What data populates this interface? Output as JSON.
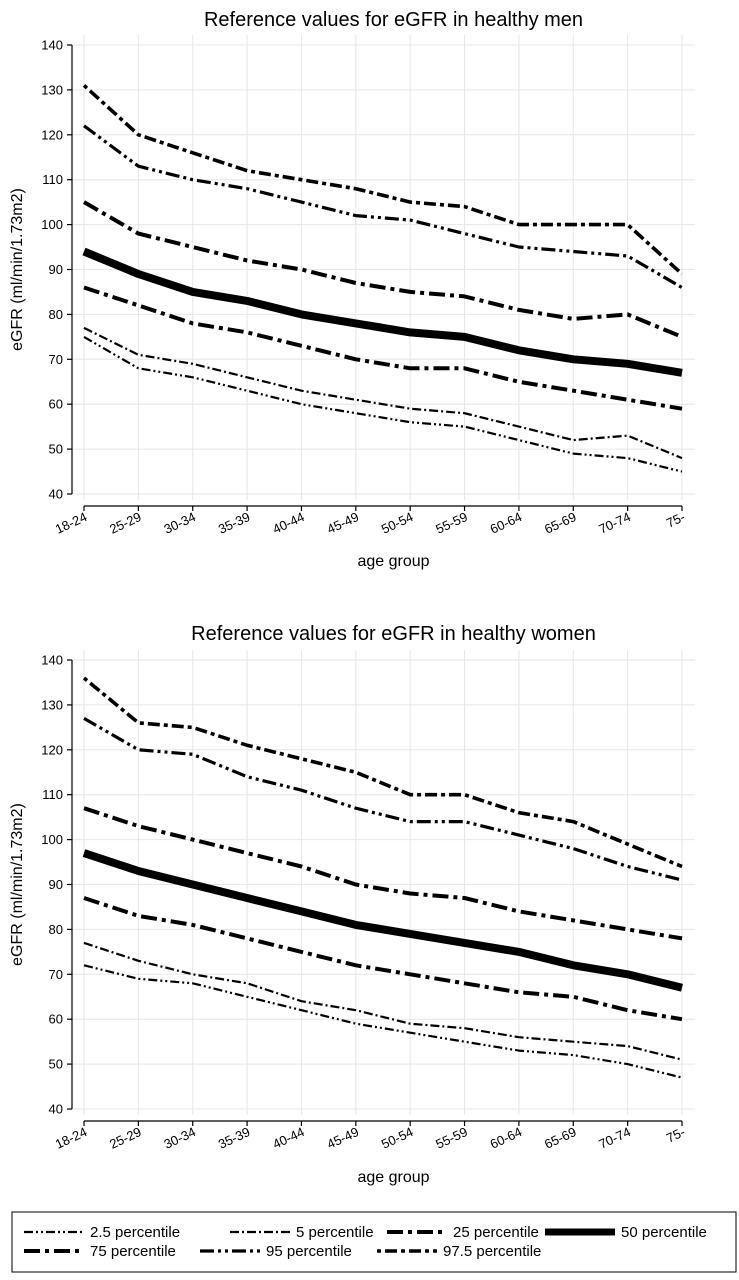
{
  "chart_data": [
    {
      "type": "line",
      "title": "Reference values for eGFR in healthy men",
      "xlabel": "age group",
      "ylabel": "eGFR (ml/min/1.73m2)",
      "ylim": [
        40,
        140
      ],
      "yticks": [
        40,
        50,
        60,
        70,
        80,
        90,
        100,
        110,
        120,
        130,
        140
      ],
      "grid": true,
      "categories": [
        "18-24",
        "25-29",
        "30-34",
        "35-39",
        "40-44",
        "45-49",
        "50-54",
        "55-59",
        "60-64",
        "65-69",
        "70-74",
        "75-"
      ],
      "series": [
        {
          "name": "2.5 percentile",
          "values": [
            75,
            68,
            66,
            63,
            60,
            58,
            56,
            55,
            52,
            49,
            48,
            45
          ]
        },
        {
          "name": "5 percentile",
          "values": [
            77,
            71,
            69,
            66,
            63,
            61,
            59,
            58,
            55,
            52,
            53,
            48
          ]
        },
        {
          "name": "25 percentile",
          "values": [
            86,
            82,
            78,
            76,
            73,
            70,
            68,
            68,
            65,
            63,
            61,
            59
          ]
        },
        {
          "name": "50 percentile",
          "values": [
            94,
            89,
            85,
            83,
            80,
            78,
            76,
            75,
            72,
            70,
            69,
            67
          ]
        },
        {
          "name": "75 percentile",
          "values": [
            105,
            98,
            95,
            92,
            90,
            87,
            85,
            84,
            81,
            79,
            80,
            75
          ]
        },
        {
          "name": "95 percentile",
          "values": [
            122,
            113,
            110,
            108,
            105,
            102,
            101,
            98,
            95,
            94,
            93,
            86
          ]
        },
        {
          "name": "97.5 percentile",
          "values": [
            131,
            120,
            116,
            112,
            110,
            108,
            105,
            104,
            100,
            100,
            100,
            89
          ]
        }
      ]
    },
    {
      "type": "line",
      "title": "Reference values for eGFR in healthy women",
      "xlabel": "age group",
      "ylabel": "eGFR (ml/min/1.73m2)",
      "ylim": [
        40,
        140
      ],
      "yticks": [
        40,
        50,
        60,
        70,
        80,
        90,
        100,
        110,
        120,
        130,
        140
      ],
      "grid": true,
      "categories": [
        "18-24",
        "25-29",
        "30-34",
        "35-39",
        "40-44",
        "45-49",
        "50-54",
        "55-59",
        "60-64",
        "65-69",
        "70-74",
        "75-"
      ],
      "series": [
        {
          "name": "2.5 percentile",
          "values": [
            72,
            69,
            68,
            65,
            62,
            59,
            57,
            55,
            53,
            52,
            50,
            47
          ]
        },
        {
          "name": "5 percentile",
          "values": [
            77,
            73,
            70,
            68,
            64,
            62,
            59,
            58,
            56,
            55,
            54,
            51
          ]
        },
        {
          "name": "25 percentile",
          "values": [
            87,
            83,
            81,
            78,
            75,
            72,
            70,
            68,
            66,
            65,
            62,
            60
          ]
        },
        {
          "name": "50 percentile",
          "values": [
            97,
            93,
            90,
            87,
            84,
            81,
            79,
            77,
            75,
            72,
            70,
            67
          ]
        },
        {
          "name": "75 percentile",
          "values": [
            107,
            103,
            100,
            97,
            94,
            90,
            88,
            87,
            84,
            82,
            80,
            78
          ]
        },
        {
          "name": "95 percentile",
          "values": [
            127,
            120,
            119,
            114,
            111,
            107,
            104,
            104,
            101,
            98,
            94,
            91
          ]
        },
        {
          "name": "97.5 percentile",
          "values": [
            136,
            126,
            125,
            121,
            118,
            115,
            110,
            110,
            106,
            104,
            99,
            94
          ]
        }
      ]
    }
  ],
  "legend": {
    "items": [
      {
        "label": "2.5 percentile",
        "style": "dash-dot-dot-thin"
      },
      {
        "label": "5 percentile",
        "style": "dash-dot-thin"
      },
      {
        "label": "25 percentile",
        "style": "dash-dot-thick"
      },
      {
        "label": "50 percentile",
        "style": "solid-heavy"
      },
      {
        "label": "75 percentile",
        "style": "dash-dot-thick"
      },
      {
        "label": "95 percentile",
        "style": "dash-dot-dot-thick"
      },
      {
        "label": "97.5 percentile",
        "style": "dot-dash-thick"
      }
    ]
  },
  "colors": {
    "line": "#000000",
    "grid": "#e6e6e6",
    "axis": "#000000",
    "background": "#ffffff"
  }
}
